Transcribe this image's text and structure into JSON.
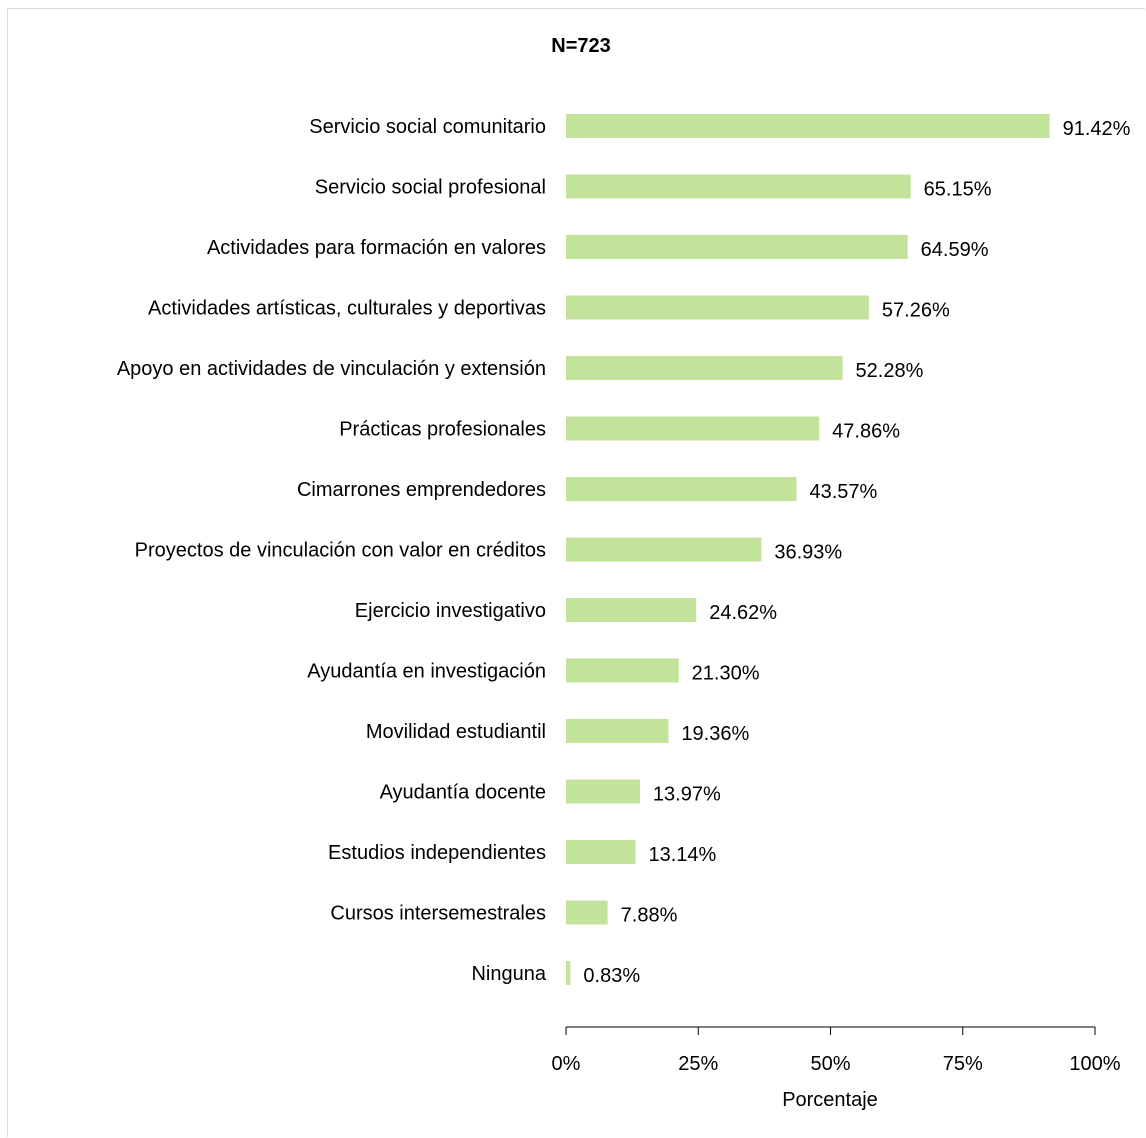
{
  "chart_data": {
    "type": "bar",
    "orientation": "horizontal",
    "title": "N=723",
    "xlabel": "Porcentaje",
    "ylabel": "",
    "xlim": [
      0,
      100
    ],
    "x_ticks": [
      "0%",
      "25%",
      "50%",
      "75%",
      "100%"
    ],
    "categories": [
      "Servicio social comunitario",
      "Servicio social profesional",
      "Actividades para formación en valores",
      "Actividades artísticas, culturales y deportivas",
      "Apoyo en actividades de vinculación y extensión",
      "Prácticas profesionales",
      "Cimarrones emprendedores",
      "Proyectos de vinculación con valor en créditos",
      "Ejercicio investigativo",
      "Ayudantía en investigación",
      "Movilidad estudiantil",
      "Ayudantía docente",
      "Estudios independientes",
      "Cursos intersemestrales",
      "Ninguna"
    ],
    "values": [
      91.42,
      65.15,
      64.59,
      57.26,
      52.28,
      47.86,
      43.57,
      36.93,
      24.62,
      21.3,
      19.36,
      13.97,
      13.14,
      7.88,
      0.83
    ],
    "data_labels": [
      "91.42%",
      "65.15%",
      "64.59%",
      "57.26%",
      "52.28%",
      "47.86%",
      "43.57%",
      "36.93%",
      "24.62%",
      "21.30%",
      "19.36%",
      "13.97%",
      "13.14%",
      "7.88%",
      "0.83%"
    ],
    "bar_color": "#c3e29b",
    "grid": false,
    "legend": "none"
  }
}
